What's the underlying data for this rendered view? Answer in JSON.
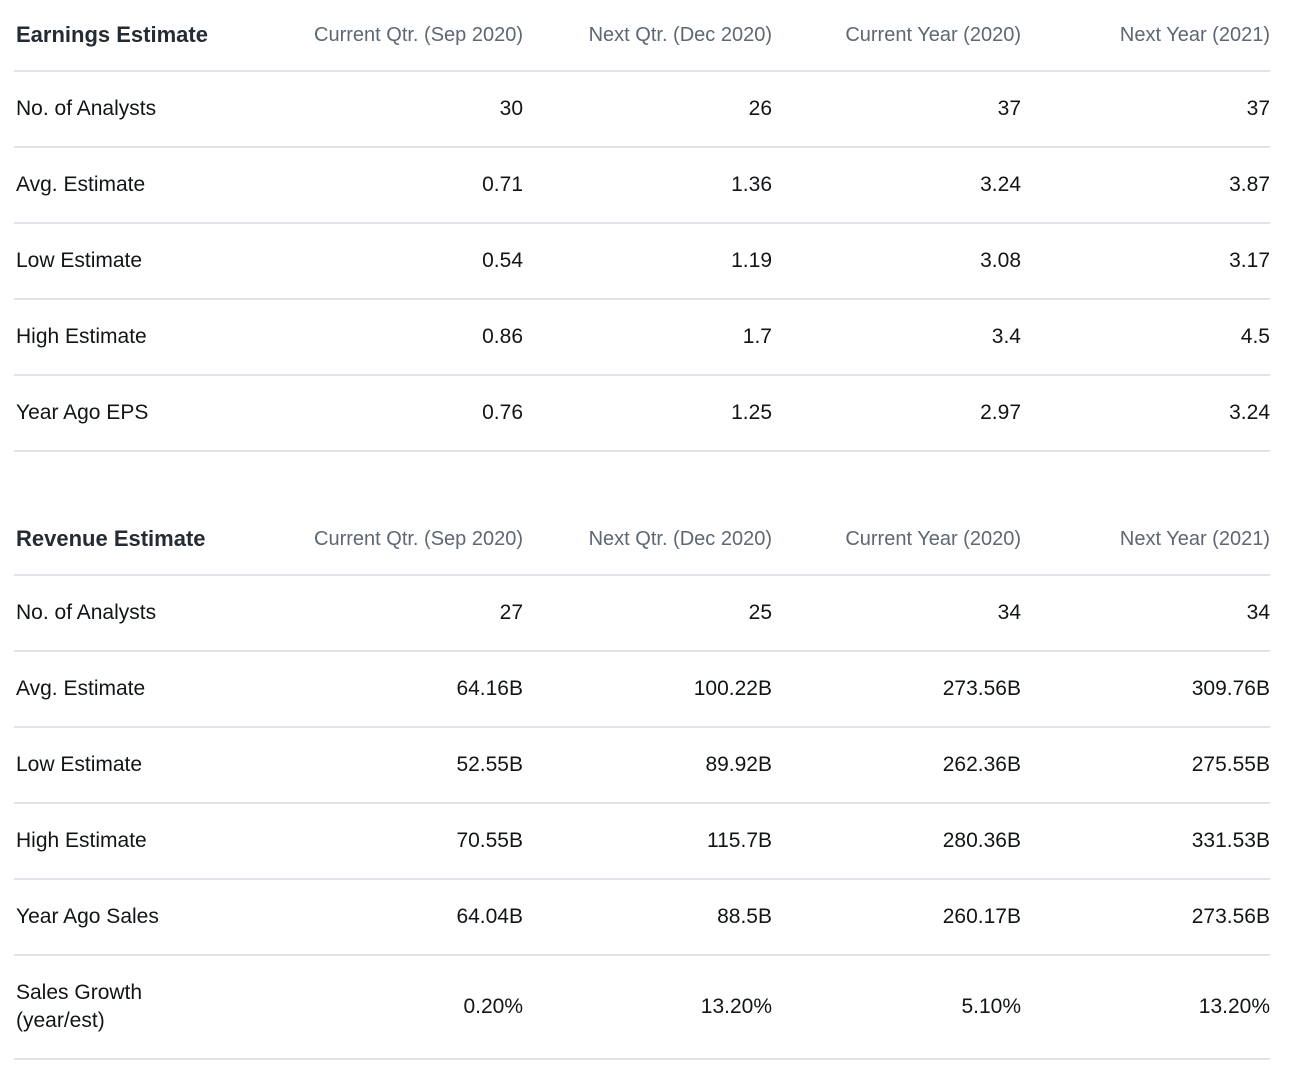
{
  "colors": {
    "background": "#ffffff",
    "title_text": "#252b33",
    "column_header_text": "#5e6772",
    "body_text": "#121517",
    "divider": "#e0e3e8"
  },
  "tables": [
    {
      "title": "Earnings Estimate",
      "columns": [
        "Current Qtr. (Sep 2020)",
        "Next Qtr. (Dec 2020)",
        "Current Year (2020)",
        "Next Year (2021)"
      ],
      "rows": [
        {
          "label": "No. of Analysts",
          "values": [
            "30",
            "26",
            "37",
            "37"
          ]
        },
        {
          "label": "Avg. Estimate",
          "values": [
            "0.71",
            "1.36",
            "3.24",
            "3.87"
          ]
        },
        {
          "label": "Low Estimate",
          "values": [
            "0.54",
            "1.19",
            "3.08",
            "3.17"
          ]
        },
        {
          "label": "High Estimate",
          "values": [
            "0.86",
            "1.7",
            "3.4",
            "4.5"
          ]
        },
        {
          "label": "Year Ago EPS",
          "values": [
            "0.76",
            "1.25",
            "2.97",
            "3.24"
          ]
        }
      ]
    },
    {
      "title": "Revenue Estimate",
      "columns": [
        "Current Qtr. (Sep 2020)",
        "Next Qtr. (Dec 2020)",
        "Current Year (2020)",
        "Next Year (2021)"
      ],
      "rows": [
        {
          "label": "No. of Analysts",
          "values": [
            "27",
            "25",
            "34",
            "34"
          ]
        },
        {
          "label": "Avg. Estimate",
          "values": [
            "64.16B",
            "100.22B",
            "273.56B",
            "309.76B"
          ]
        },
        {
          "label": "Low Estimate",
          "values": [
            "52.55B",
            "89.92B",
            "262.36B",
            "275.55B"
          ]
        },
        {
          "label": "High Estimate",
          "values": [
            "70.55B",
            "115.7B",
            "280.36B",
            "331.53B"
          ]
        },
        {
          "label": "Year Ago Sales",
          "values": [
            "64.04B",
            "88.5B",
            "260.17B",
            "273.56B"
          ]
        },
        {
          "label": "Sales Growth (year/est)",
          "values": [
            "0.20%",
            "13.20%",
            "5.10%",
            "13.20%"
          ]
        }
      ]
    }
  ]
}
